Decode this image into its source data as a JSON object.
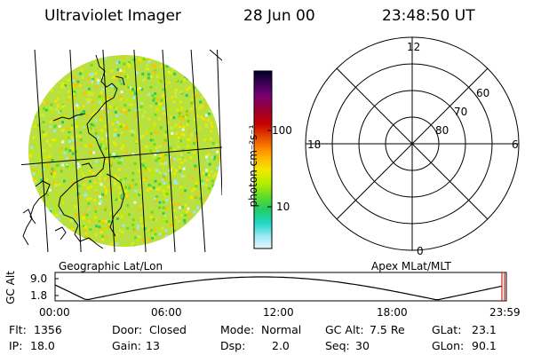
{
  "header": {
    "instrument": "Ultraviolet Imager",
    "date": "28 Jun 00",
    "time": "23:48:50 UT"
  },
  "colorbar": {
    "unit": "photon cm⁻²s⁻¹",
    "ticks": [
      "100",
      "10"
    ],
    "colors": [
      "#000022",
      "#3a0058",
      "#7a0070",
      "#9a0030",
      "#c80000",
      "#e85000",
      "#ff8a00",
      "#ffbf00",
      "#f0e800",
      "#b8ee00",
      "#66dd22",
      "#22cc66",
      "#22d8c8",
      "#9ae8f4",
      "#e6f6fb"
    ]
  },
  "geo_panel": {
    "caption": "Geographic Lat/Lon"
  },
  "polar_panel": {
    "caption": "Apex MLat/MLT",
    "mlt_labels": [
      "12",
      "18",
      "6",
      "0"
    ],
    "lat_labels": [
      "60",
      "70",
      "80"
    ]
  },
  "altitude_plot": {
    "ylabel": "GC Alt",
    "yticks": [
      "9.0",
      "1.8"
    ],
    "xticks": [
      "00:00",
      "06:00",
      "12:00",
      "18:00",
      "23:59"
    ]
  },
  "status": {
    "flt_label": "Flt:",
    "flt_value": "1356",
    "ip_label": "IP:",
    "ip_value": "18.0",
    "door_label": "Door:",
    "door_value": "Closed",
    "gain_label": "Gain:",
    "gain_value": "13",
    "mode_label": "Mode:",
    "mode_value": "Normal",
    "dsp_label": "Dsp:",
    "dsp_value": "2.0",
    "gcalt_label": "GC Alt:",
    "gcalt_value": "7.5 Re",
    "seq_label": "Seq:",
    "seq_value": "30",
    "glat_label": "GLat:",
    "glat_value": "23.1",
    "glon_label": "GLon:",
    "glon_value": "90.1"
  }
}
